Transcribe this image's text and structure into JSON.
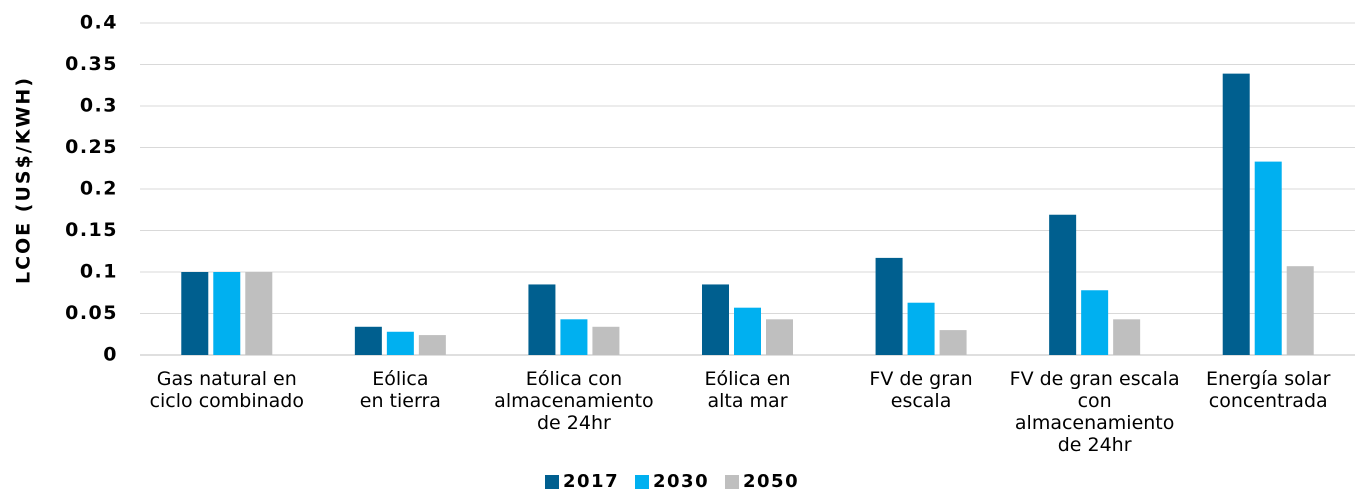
{
  "chart_data": {
    "type": "bar",
    "y_label": "LCOE (US$/KWH)",
    "categories": [
      "Gas natural en\nciclo combinado",
      "Eólica\nen tierra",
      "Eólica con\nalmacenamiento\nde 24hr",
      "Eólica en\nalta mar",
      "FV de gran\nescala",
      "FV de gran escala\ncon almacenamiento\nde 24hr",
      "Energía solar\nconcentrada"
    ],
    "series": [
      {
        "name": "2017",
        "color": "#005f8f",
        "values": [
          0.1,
          0.034,
          0.085,
          0.085,
          0.117,
          0.169,
          0.339
        ]
      },
      {
        "name": "2030",
        "color": "#00b0f0",
        "values": [
          0.1,
          0.028,
          0.043,
          0.057,
          0.063,
          0.078,
          0.233
        ]
      },
      {
        "name": "2050",
        "color": "#bfbfbf",
        "values": [
          0.1,
          0.024,
          0.034,
          0.043,
          0.03,
          0.043,
          0.107
        ]
      }
    ],
    "ylim": [
      0,
      0.4
    ],
    "yticks": [
      0,
      0.05,
      0.1,
      0.15,
      0.2,
      0.25,
      0.3,
      0.35,
      0.4
    ],
    "grid": true,
    "legend": "bottom"
  }
}
